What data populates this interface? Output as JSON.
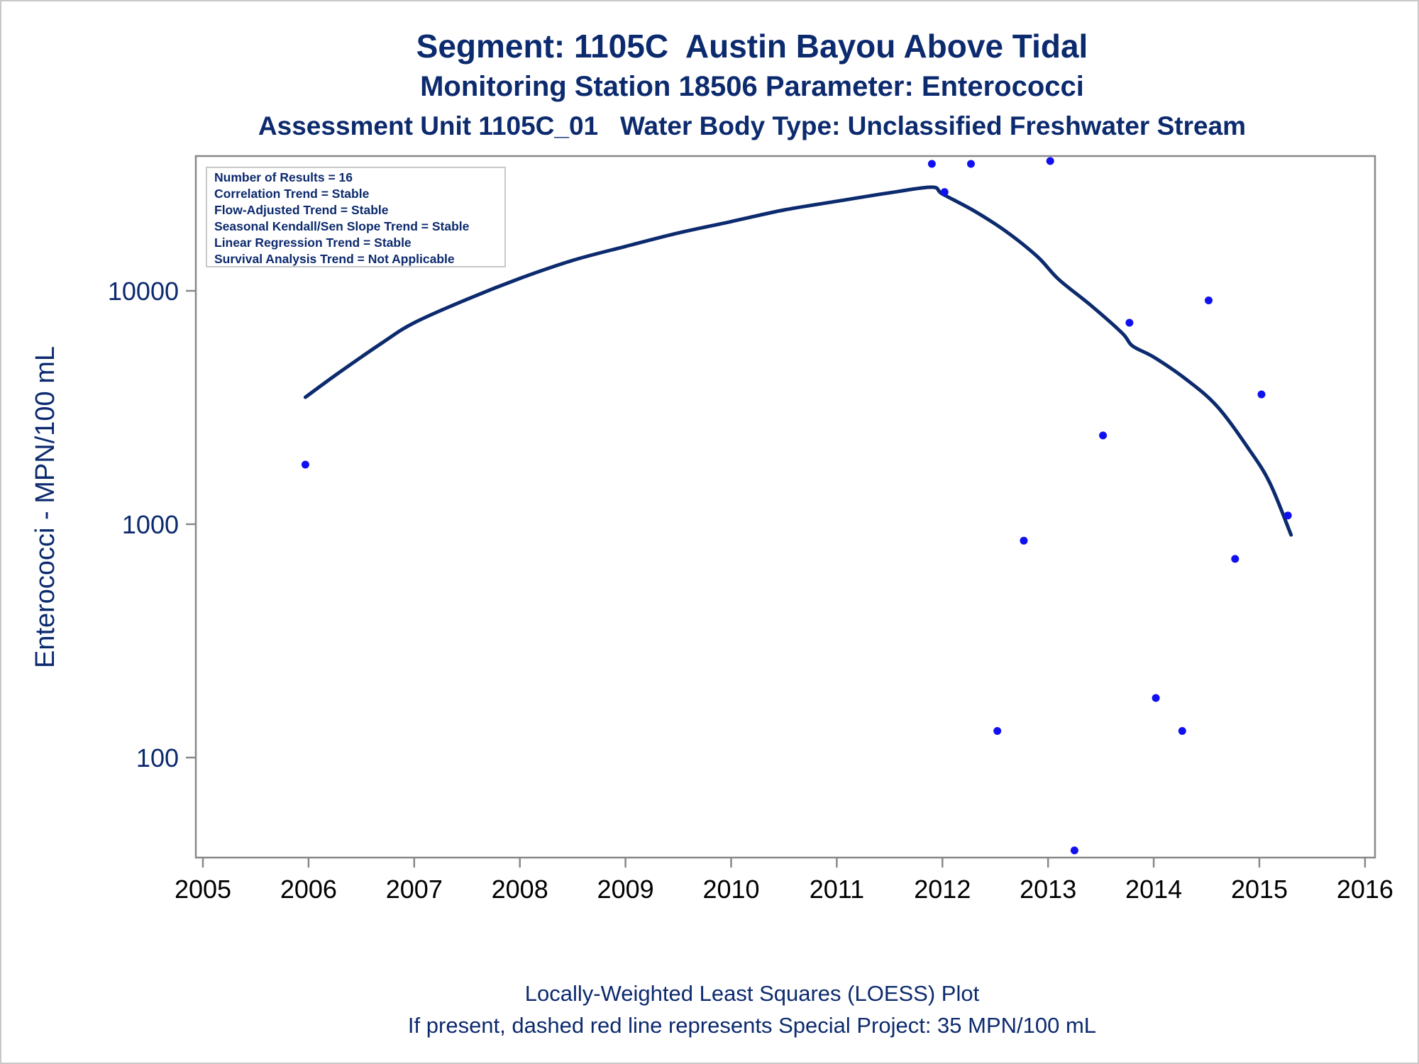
{
  "title_lines": [
    "Segment: 1105C  Austin Bayou Above Tidal",
    "Monitoring Station 18506 Parameter: Enterococci",
    "Assessment Unit 1105C_01   Water Body Type: Unclassified Freshwater Stream"
  ],
  "stats_box": [
    "Number of Results = 16",
    "Correlation Trend = Stable",
    "Flow-Adjusted Trend = Stable",
    "Seasonal Kendall/Sen Slope Trend = Stable",
    "Linear Regression Trend = Stable",
    "Survival Analysis Trend = Not Applicable"
  ],
  "footer": [
    "Locally-Weighted Least Squares (LOESS) Plot",
    "If present, dashed red line represents Special Project: 35 MPN/100 mL"
  ],
  "colors": {
    "text": "#0c2a6e",
    "points": "#1010f0",
    "loess_line": "#0c2a6e",
    "axis": "#888888"
  },
  "chart_data": {
    "type": "scatter",
    "ylabel": "Enterococci - MPN/100 mL",
    "xlabel": "",
    "x_ticks": [
      "2005",
      "2006",
      "2007",
      "2008",
      "2009",
      "2010",
      "2011",
      "2012",
      "2013",
      "2014",
      "2015",
      "2016"
    ],
    "y_ticks": [
      "100",
      "1000",
      "10000"
    ],
    "xlim": [
      2005,
      2016.2
    ],
    "ylim": [
      40,
      40000
    ],
    "y_scale": "log",
    "grid": false,
    "series": [
      {
        "type": "scatter",
        "x": [
          2005.97,
          2011.9,
          2012.02,
          2012.27,
          2012.52,
          2012.77,
          2013.02,
          2013.25,
          2013.52,
          2013.77,
          2014.02,
          2014.27,
          2014.52,
          2014.77,
          2015.02,
          2015.27
        ],
        "y": [
          1800,
          35000,
          26500,
          35000,
          130,
          850,
          36000,
          40,
          2400,
          7300,
          180,
          130,
          9100,
          710,
          3600,
          1090
        ]
      },
      {
        "type": "line",
        "x": [
          2005.97,
          2006.3,
          2006.7,
          2007.0,
          2007.5,
          2008.0,
          2008.5,
          2009.0,
          2009.5,
          2010.0,
          2010.5,
          2011.0,
          2011.5,
          2011.9,
          2012.0,
          2012.3,
          2012.6,
          2012.9,
          2013.1,
          2013.4,
          2013.7,
          2013.8,
          2014.0,
          2014.3,
          2014.6,
          2014.9,
          2015.1,
          2015.3
        ],
        "y": [
          3500,
          4500,
          6000,
          7300,
          9200,
          11300,
          13500,
          15500,
          17700,
          19800,
          22200,
          24200,
          26300,
          27800,
          26000,
          22000,
          18000,
          14000,
          11200,
          8700,
          6600,
          5800,
          5200,
          4200,
          3200,
          2100,
          1500,
          900
        ]
      }
    ]
  }
}
